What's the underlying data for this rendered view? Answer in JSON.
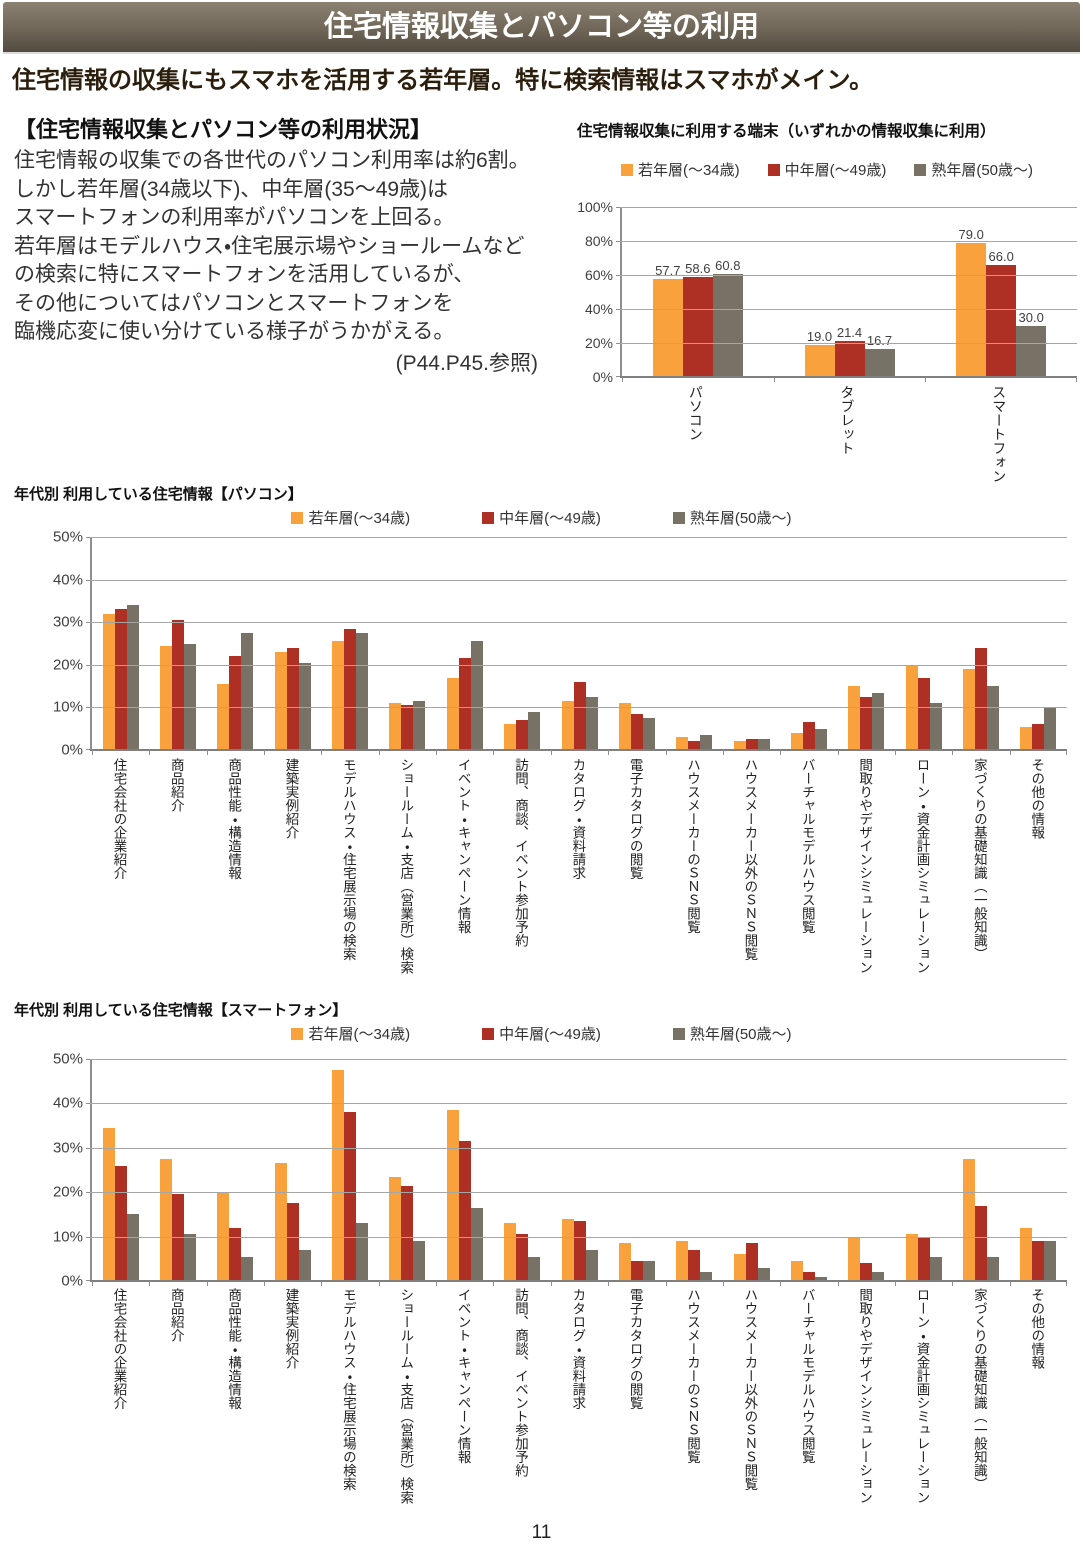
{
  "page": {
    "title_bar": "住宅情報収集とパソコン等の利用",
    "lead": "住宅情報の収集にもスマホを活用する若年層。特に検索情報はスマホがメイン。",
    "number": "11"
  },
  "textblock": {
    "heading": "【住宅情報収集とパソコン等の利用状況】",
    "lines": [
      "住宅情報の収集での各世代のパソコン利用率は約6割。",
      "しかし若年層(34歳以下)、中年層(35～49歳)は",
      "スマートフォンの利用率がパソコンを上回る。",
      "若年層はモデルハウス・住宅展示場やショールームなど",
      "の検索に特にスマートフォンを活用しているが、",
      "その他についてはパソコンとスマートフォンを",
      "臨機応変に使い分けている様子がうかがえる。"
    ],
    "note": "(P44.P45.参照)"
  },
  "legend": [
    "若年層(～34歳)",
    "中年層(～49歳)",
    "熟年層(50歳～)"
  ],
  "colors": {
    "series": [
      "#F9A13C",
      "#AE2F23",
      "#787165"
    ],
    "axis": "#7f7f7f",
    "grid": "#a6a6a6",
    "titlebar_top": "#8b8273",
    "titlebar_bottom": "#534b3f"
  },
  "chart_data": [
    {
      "id": "device-usage",
      "type": "bar",
      "title": "住宅情報収集に利用する端末（いずれかの情報収集に利用）",
      "categories": [
        "パソコン",
        "タブレット",
        "スマートフォン"
      ],
      "series": [
        {
          "name": "若年層(～34歳)",
          "values": [
            57.7,
            19.0,
            79.0
          ]
        },
        {
          "name": "中年層(～49歳)",
          "values": [
            58.6,
            21.4,
            66.0
          ]
        },
        {
          "name": "熟年層(50歳～)",
          "values": [
            60.8,
            16.7,
            30.0
          ]
        }
      ],
      "ylim": [
        0,
        100
      ],
      "yticks": [
        "100%",
        "80%",
        "60%",
        "40%",
        "20%",
        "0%"
      ],
      "data_labels": true,
      "legend_position": "top",
      "grid": true
    },
    {
      "id": "info-by-pc",
      "type": "bar",
      "title": "年代別 利用している住宅情報【パソコン】",
      "categories": [
        "住宅会社の企業紹介",
        "商品紹介",
        "商品性能・構造情報",
        "建築実例紹介",
        "モデルハウス・住宅展示場の検索",
        "ショールーム・支店（営業所）検索",
        "イベント・キャンペーン情報",
        "訪問、商談、イベント参加予約",
        "カタログ・資料請求",
        "電子カタログの閲覧",
        "ハウスメーカーのＳＮＳ閲覧",
        "ハウスメーカー以外のＳＮＳ閲覧",
        "バーチャルモデルハウス閲覧",
        "間取りやデザインシミュレーション",
        "ローン・資金計画シミュレーション",
        "家づくりの基礎知識（一般知識）",
        "その他の情報"
      ],
      "series": [
        {
          "name": "若年層(～34歳)",
          "values": [
            32,
            24.5,
            15.5,
            23,
            25.5,
            11,
            17,
            6,
            11.5,
            11,
            3,
            2,
            4,
            15,
            20,
            19,
            5.5
          ]
        },
        {
          "name": "中年層(～49歳)",
          "values": [
            33,
            30.5,
            22,
            24,
            28.5,
            10.5,
            21.5,
            7,
            16,
            8.5,
            2,
            2.5,
            6.5,
            12.5,
            17,
            24,
            6
          ]
        },
        {
          "name": "熟年層(50歳～)",
          "values": [
            34,
            25,
            27.5,
            20.5,
            27.5,
            11.5,
            25.5,
            9,
            12.5,
            7.5,
            3.5,
            2.5,
            5,
            13.5,
            11,
            15,
            10
          ]
        }
      ],
      "ylim": [
        0,
        50
      ],
      "yticks": [
        "50%",
        "40%",
        "30%",
        "20%",
        "10%",
        "0%"
      ],
      "data_labels": false,
      "legend_position": "top",
      "grid": true
    },
    {
      "id": "info-by-smartphone",
      "type": "bar",
      "title": "年代別 利用している住宅情報【スマートフォン】",
      "categories": [
        "住宅会社の企業紹介",
        "商品紹介",
        "商品性能・構造情報",
        "建築実例紹介",
        "モデルハウス・住宅展示場の検索",
        "ショールーム・支店（営業所）検索",
        "イベント・キャンペーン情報",
        "訪問、商談、イベント参加予約",
        "カタログ・資料請求",
        "電子カタログの閲覧",
        "ハウスメーカーのＳＮＳ閲覧",
        "ハウスメーカー以外のＳＮＳ閲覧",
        "バーチャルモデルハウス閲覧",
        "間取りやデザインシミュレーション",
        "ローン・資金計画シミュレーション",
        "家づくりの基礎知識（一般知識）",
        "その他の情報"
      ],
      "series": [
        {
          "name": "若年層(～34歳)",
          "values": [
            34.5,
            27.5,
            20,
            26.5,
            47.5,
            23.5,
            38.5,
            13,
            14,
            8.5,
            9,
            6,
            4.5,
            10,
            10.5,
            27.5,
            12
          ]
        },
        {
          "name": "中年層(～49歳)",
          "values": [
            26,
            19.5,
            12,
            17.5,
            38,
            21.5,
            31.5,
            10.5,
            13.5,
            4.5,
            7,
            8.5,
            2,
            4,
            10,
            17,
            9
          ]
        },
        {
          "name": "熟年層(50歳～)",
          "values": [
            15,
            10.5,
            5.5,
            7,
            13,
            9,
            16.5,
            5.5,
            7,
            4.5,
            2,
            3,
            1,
            2,
            5.5,
            5.5,
            9
          ]
        }
      ],
      "ylim": [
        0,
        50
      ],
      "yticks": [
        "50%",
        "40%",
        "30%",
        "20%",
        "10%",
        "0%"
      ],
      "data_labels": false,
      "legend_position": "top",
      "grid": true
    }
  ]
}
